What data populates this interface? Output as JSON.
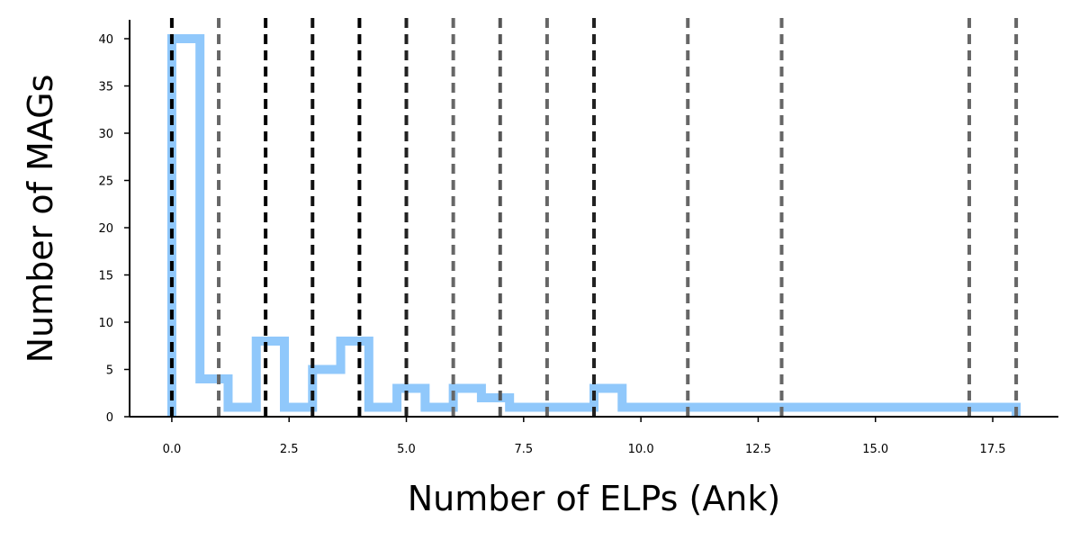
{
  "chart_data": {
    "type": "histogram-step",
    "xlabel": "Number of ELPs (Ank)",
    "ylabel": "Number of MAGs",
    "xlim": [
      -0.9,
      18.9
    ],
    "ylim": [
      0,
      42
    ],
    "xticks": [
      "0.0",
      "2.5",
      "5.0",
      "7.5",
      "10.0",
      "12.5",
      "15.0",
      "17.5"
    ],
    "xtick_values": [
      0,
      2.5,
      5,
      7.5,
      10,
      12.5,
      15,
      17.5
    ],
    "yticks": [
      "0",
      "5",
      "10",
      "15",
      "20",
      "25",
      "30",
      "35",
      "40"
    ],
    "ytick_values": [
      0,
      5,
      10,
      15,
      20,
      25,
      30,
      35,
      40
    ],
    "bin_edges": [
      0,
      0.6,
      1.2,
      1.8,
      2.4,
      3.0,
      3.6,
      4.2,
      4.8,
      5.4,
      6.0,
      6.6,
      7.2,
      7.8,
      8.4,
      9.0,
      9.6,
      10.2,
      10.8,
      11.4,
      12.0,
      12.6,
      13.2,
      13.8,
      14.4,
      15.0,
      15.6,
      16.2,
      16.8,
      17.4,
      18.0
    ],
    "counts": [
      40,
      4,
      1,
      8,
      1,
      5,
      8,
      1,
      3,
      1,
      3,
      2,
      1,
      1,
      1,
      3,
      1,
      1,
      1,
      1,
      1,
      1,
      1,
      1,
      1,
      1,
      1,
      1,
      1,
      1
    ],
    "vlines": [
      {
        "x": 0,
        "color": "#000000"
      },
      {
        "x": 1,
        "color": "#666666"
      },
      {
        "x": 2,
        "color": "#000000"
      },
      {
        "x": 3,
        "color": "#111111"
      },
      {
        "x": 4,
        "color": "#000000"
      },
      {
        "x": 5,
        "color": "#222222"
      },
      {
        "x": 6,
        "color": "#666666"
      },
      {
        "x": 7,
        "color": "#555555"
      },
      {
        "x": 8,
        "color": "#666666"
      },
      {
        "x": 9,
        "color": "#222222"
      },
      {
        "x": 11,
        "color": "#666666"
      },
      {
        "x": 13,
        "color": "#666666"
      },
      {
        "x": 17,
        "color": "#666666"
      },
      {
        "x": 18,
        "color": "#666666"
      }
    ],
    "colors": {
      "histogram": "#90c8fb",
      "axis": "#000000"
    },
    "grid": false
  }
}
